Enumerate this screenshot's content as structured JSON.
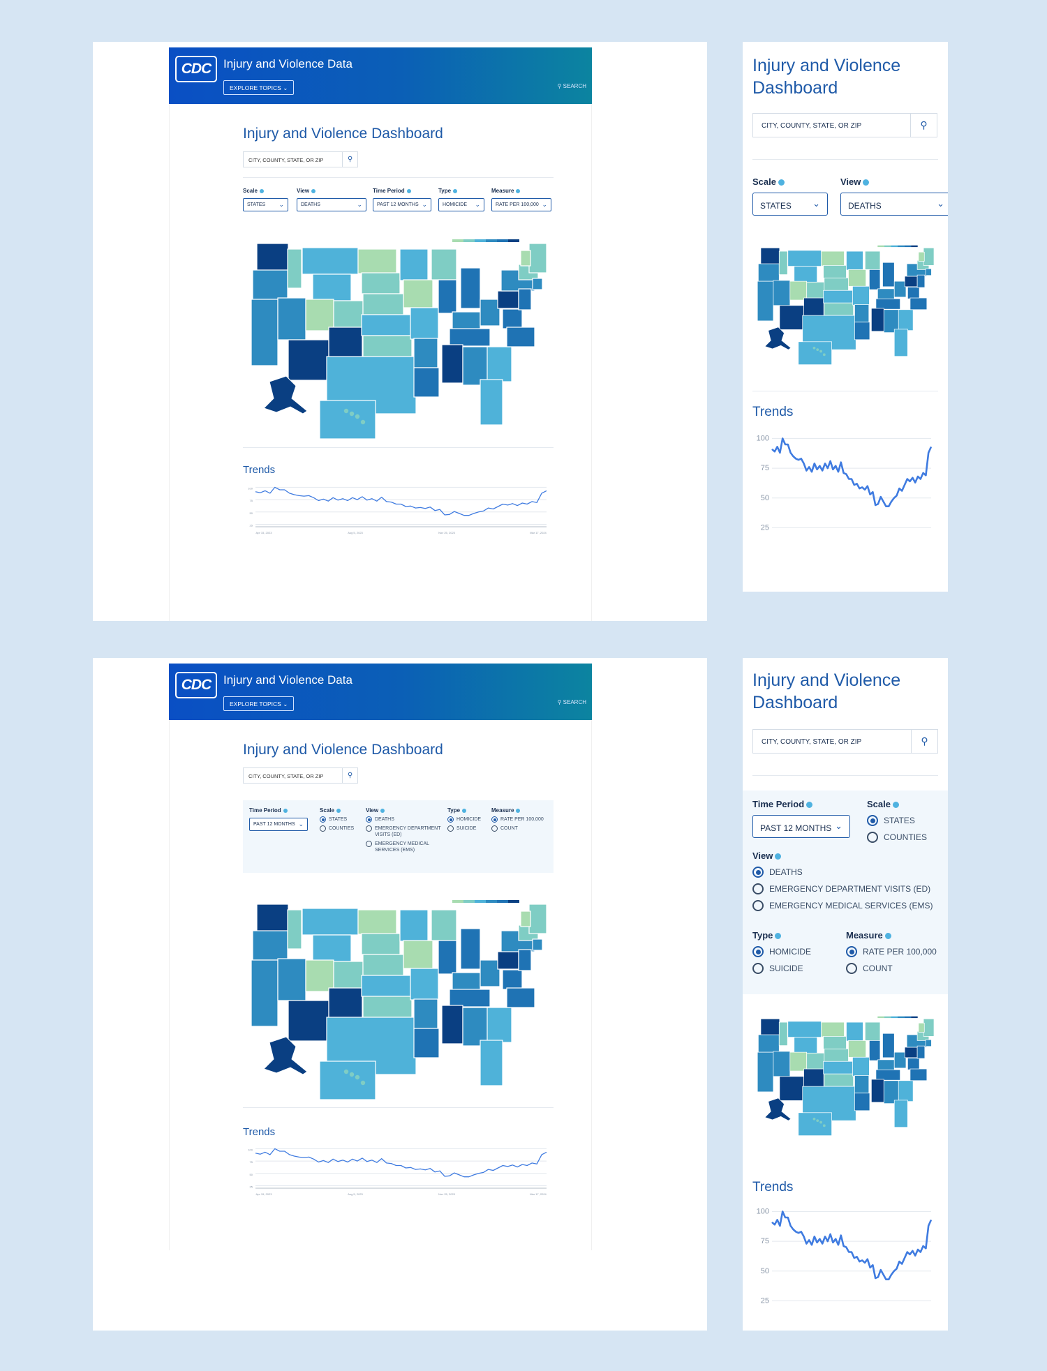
{
  "site": {
    "logo": "CDC",
    "title": "Injury and Violence Data",
    "explore": "EXPLORE TOPICS",
    "search": "SEARCH"
  },
  "dashboard": {
    "title": "Injury and Violence Dashboard",
    "search_placeholder": "CITY, COUNTY, STATE, OR ZIP",
    "trends_title": "Trends"
  },
  "filters": {
    "scale": {
      "label": "Scale",
      "value": "STATES",
      "options": [
        "STATES",
        "COUNTIES"
      ]
    },
    "view": {
      "label": "View",
      "value": "DEATHS",
      "options": [
        "DEATHS",
        "EMERGENCY DEPARTMENT VISITS (ED)",
        "EMERGENCY MEDICAL SERVICES (EMS)"
      ]
    },
    "time_period": {
      "label": "Time Period",
      "value": "PAST 12 MONTHS"
    },
    "type": {
      "label": "Type",
      "value": "HOMICIDE",
      "options": [
        "HOMICIDE",
        "SUICIDE"
      ]
    },
    "measure": {
      "label": "Measure",
      "value": "RATE PER 100,000",
      "options": [
        "RATE PER 100,000",
        "COUNT"
      ]
    }
  },
  "map_colors": [
    "#0a3f82",
    "#1f73b4",
    "#2e8bc0",
    "#4fb2d9",
    "#7fcdc4",
    "#a8dcb0"
  ],
  "chart_data": {
    "type": "line",
    "title": "Trends",
    "yticks": [
      100,
      75,
      50,
      25
    ],
    "ylim": [
      20,
      102
    ],
    "xtick_labels": [
      "Apr 15, 2023",
      "Aug 5, 2023",
      "Nov 25, 2023",
      "Mar 17, 2024"
    ],
    "values": [
      91,
      89,
      93,
      88,
      100,
      95,
      95,
      88,
      85,
      83,
      82,
      83,
      79,
      73,
      76,
      72,
      79,
      74,
      77,
      73,
      79,
      75,
      81,
      74,
      77,
      72,
      80,
      71,
      70,
      66,
      66,
      61,
      62,
      58,
      59,
      57,
      60,
      53,
      55,
      44,
      45,
      51,
      47,
      43,
      43,
      47,
      50,
      52,
      58,
      56,
      61,
      66,
      64,
      67,
      63,
      68,
      66,
      71,
      69,
      88,
      93
    ],
    "line_color": "#3f7be0"
  }
}
